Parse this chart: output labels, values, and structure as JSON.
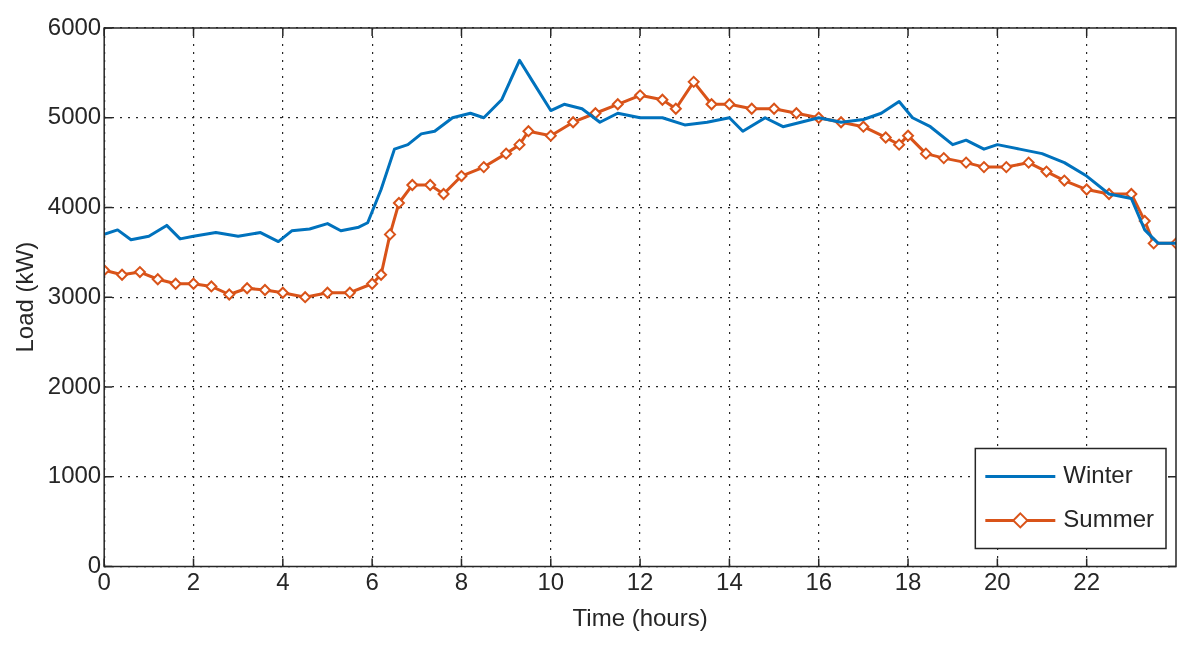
{
  "chart_data": {
    "type": "line",
    "xlabel": "Time (hours)",
    "ylabel": "Load (kW)",
    "xlim": [
      0,
      24
    ],
    "xticks": [
      0,
      2,
      4,
      6,
      8,
      10,
      12,
      14,
      16,
      18,
      20,
      22
    ],
    "ylim": [
      0,
      6000
    ],
    "yticks": [
      0,
      1000,
      2000,
      3000,
      4000,
      5000,
      6000
    ],
    "grid": true,
    "legend": "bottom right",
    "line_style": "solid",
    "series": [
      {
        "name": "Winter",
        "color": "#0072bd",
        "marker": "none",
        "x": [
          0,
          0.3,
          0.6,
          1,
          1.4,
          1.7,
          2,
          2.5,
          3,
          3.5,
          3.9,
          4.2,
          4.6,
          5,
          5.3,
          5.7,
          5.9,
          6.2,
          6.5,
          6.8,
          7.1,
          7.4,
          7.8,
          8.2,
          8.5,
          8.9,
          9.3,
          9.6,
          10,
          10.3,
          10.7,
          11.1,
          11.5,
          12,
          12.5,
          13,
          13.5,
          14,
          14.3,
          14.8,
          15.2,
          15.6,
          16,
          16.5,
          17,
          17.4,
          17.8,
          18.1,
          18.5,
          19,
          19.3,
          19.7,
          20,
          20.5,
          21,
          21.5,
          22,
          22.5,
          23,
          23.3,
          23.6,
          24
        ],
        "values": [
          3700,
          3750,
          3640,
          3680,
          3800,
          3650,
          3680,
          3720,
          3680,
          3720,
          3620,
          3740,
          3760,
          3820,
          3740,
          3780,
          3830,
          4200,
          4650,
          4700,
          4820,
          4850,
          5000,
          5050,
          5000,
          5200,
          5640,
          5400,
          5080,
          5150,
          5100,
          4950,
          5050,
          5000,
          5000,
          4920,
          4950,
          5000,
          4850,
          5000,
          4900,
          4950,
          5000,
          4950,
          4980,
          5050,
          5180,
          5000,
          4900,
          4700,
          4750,
          4650,
          4700,
          4650,
          4600,
          4500,
          4350,
          4150,
          4100,
          3750,
          3600,
          3600
        ]
      },
      {
        "name": "Summer",
        "color": "#d95319",
        "marker": "diamond",
        "x": [
          0,
          0.4,
          0.8,
          1.2,
          1.6,
          2,
          2.4,
          2.8,
          3.2,
          3.6,
          4,
          4.5,
          5,
          5.5,
          6,
          6.2,
          6.4,
          6.6,
          6.9,
          7.3,
          7.6,
          8,
          8.5,
          9,
          9.3,
          9.5,
          10,
          10.5,
          11,
          11.5,
          12,
          12.5,
          12.8,
          13.2,
          13.6,
          14,
          14.5,
          15,
          15.5,
          16,
          16.5,
          17,
          17.5,
          17.8,
          18,
          18.4,
          18.8,
          19.3,
          19.7,
          20.2,
          20.7,
          21.1,
          21.5,
          22,
          22.5,
          23,
          23.3,
          23.5,
          24
        ],
        "values": [
          3300,
          3250,
          3280,
          3200,
          3150,
          3150,
          3120,
          3030,
          3100,
          3080,
          3050,
          3000,
          3050,
          3050,
          3150,
          3250,
          3700,
          4050,
          4250,
          4250,
          4150,
          4350,
          4450,
          4600,
          4700,
          4850,
          4800,
          4950,
          5050,
          5150,
          5250,
          5200,
          5100,
          5400,
          5150,
          5150,
          5100,
          5100,
          5050,
          5000,
          4950,
          4900,
          4780,
          4700,
          4800,
          4600,
          4550,
          4500,
          4450,
          4450,
          4500,
          4400,
          4300,
          4200,
          4150,
          4150,
          3850,
          3600,
          3600
        ]
      }
    ]
  }
}
